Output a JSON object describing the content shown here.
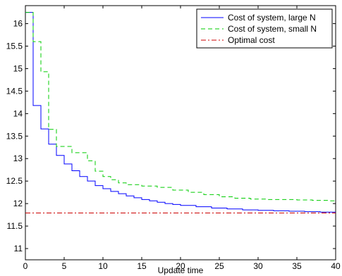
{
  "chart_data": {
    "type": "line",
    "title": "",
    "xlabel": "Update time",
    "ylabel": "",
    "xlim": [
      0,
      40
    ],
    "ylim": [
      10.75,
      16.4
    ],
    "grid": false,
    "legend_position": "top-right",
    "x_ticks": [
      0,
      5,
      10,
      15,
      20,
      25,
      30,
      35,
      40
    ],
    "y_ticks": [
      11,
      11.5,
      12,
      12.5,
      13,
      13.5,
      14,
      14.5,
      15,
      15.5,
      16
    ],
    "x_tick_labels": [
      "0",
      "5",
      "10",
      "15",
      "20",
      "25",
      "30",
      "35",
      "40"
    ],
    "y_tick_labels": [
      "11",
      "11.5",
      "12",
      "12.5",
      "13",
      "13.5",
      "14",
      "14.5",
      "15",
      "15.5",
      "16"
    ],
    "series": [
      {
        "name": "Cost of system, large N",
        "color": "#0000ff",
        "style": "solid",
        "step": true,
        "x": [
          0,
          1,
          2,
          3,
          4,
          5,
          6,
          7,
          8,
          9,
          10,
          11,
          12,
          13,
          14,
          15,
          16,
          17,
          18,
          19,
          20,
          22,
          24,
          26,
          28,
          30,
          32,
          34,
          36,
          38,
          40
        ],
        "y": [
          16.25,
          14.18,
          13.66,
          13.32,
          13.07,
          12.88,
          12.73,
          12.6,
          12.5,
          12.4,
          12.33,
          12.27,
          12.22,
          12.17,
          12.13,
          12.09,
          12.06,
          12.03,
          12.0,
          11.98,
          11.96,
          11.93,
          11.9,
          11.88,
          11.86,
          11.85,
          11.84,
          11.83,
          11.82,
          11.81,
          11.81
        ]
      },
      {
        "name": "Cost of system, small N",
        "color": "#00cc00",
        "style": "dashed",
        "step": true,
        "x": [
          0,
          1,
          2,
          3,
          4,
          6,
          8,
          9,
          10,
          11,
          12,
          13,
          15,
          17,
          19,
          21,
          23,
          25,
          27,
          29,
          31,
          33,
          35,
          37,
          39,
          40
        ],
        "y": [
          16.25,
          15.6,
          14.93,
          13.65,
          13.27,
          13.13,
          12.95,
          12.72,
          12.6,
          12.53,
          12.46,
          12.42,
          12.39,
          12.36,
          12.3,
          12.25,
          12.2,
          12.15,
          12.12,
          12.1,
          12.09,
          12.09,
          12.08,
          12.07,
          12.06,
          12.06
        ]
      },
      {
        "name": "Optimal cost",
        "color": "#cc0000",
        "style": "dashdot",
        "step": false,
        "x": [
          0,
          40
        ],
        "y": [
          11.79,
          11.79
        ]
      }
    ]
  }
}
